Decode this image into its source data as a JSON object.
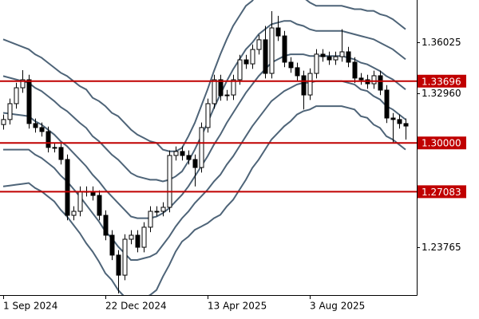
{
  "chart_data": {
    "type": "candlestick",
    "categories": [
      "1 Sep 2024",
      null,
      null,
      null,
      null,
      null,
      null,
      null,
      null,
      null,
      null,
      null,
      null,
      null,
      null,
      null,
      "22 Dec 2024",
      null,
      null,
      null,
      null,
      null,
      null,
      null,
      null,
      null,
      null,
      null,
      null,
      null,
      null,
      null,
      "13 Apr 2025",
      null,
      null,
      null,
      null,
      null,
      null,
      null,
      null,
      null,
      null,
      null,
      null,
      null,
      null,
      null,
      "3 Aug 2025",
      null,
      null,
      null,
      null,
      null,
      null,
      null,
      null,
      null,
      null,
      null,
      null,
      null,
      null,
      null
    ],
    "open": [
      1.311,
      1.314,
      1.3235,
      1.333,
      1.3378,
      1.3116,
      1.3092,
      1.3068,
      1.2973,
      1.2973,
      1.2901,
      1.2567,
      1.2591,
      1.271,
      1.271,
      1.2686,
      1.2567,
      1.2448,
      1.2329,
      1.2209,
      1.2424,
      1.2448,
      1.2376,
      1.2496,
      1.2591,
      1.2591,
      1.2615,
      1.2925,
      1.2949,
      1.2925,
      1.2901,
      1.2853,
      1.3092,
      1.3235,
      1.3378,
      1.3283,
      1.3287,
      1.3378,
      1.3497,
      1.3473,
      1.3559,
      1.3617,
      1.3416,
      1.3688,
      1.364,
      1.3483,
      1.345,
      1.3402,
      1.3287,
      1.3416,
      1.3531,
      1.3516,
      1.3497,
      1.3516,
      1.3545,
      1.3483,
      1.3388,
      1.3378,
      1.3354,
      1.3402,
      1.3316,
      1.3149,
      1.314,
      1.3116
    ],
    "high": [
      1.317,
      1.3265,
      1.336,
      1.3435,
      1.3408,
      1.3146,
      1.3122,
      1.3098,
      1.3003,
      1.3003,
      1.2931,
      1.2621,
      1.274,
      1.274,
      1.274,
      1.2716,
      1.2597,
      1.2478,
      1.2359,
      1.2454,
      1.2478,
      1.2478,
      1.2526,
      1.2621,
      1.2621,
      1.2645,
      1.2955,
      1.2979,
      1.2979,
      1.2955,
      1.2931,
      1.3122,
      1.3265,
      1.3408,
      1.3408,
      1.3317,
      1.3408,
      1.3527,
      1.3527,
      1.3589,
      1.3647,
      1.37,
      1.3788,
      1.376,
      1.367,
      1.3513,
      1.348,
      1.3432,
      1.3446,
      1.3561,
      1.3561,
      1.3546,
      1.3546,
      1.368,
      1.3575,
      1.3513,
      1.3418,
      1.3408,
      1.3432,
      1.3432,
      1.3346,
      1.3179,
      1.317,
      1.3146
    ],
    "low": [
      1.308,
      1.311,
      1.3205,
      1.33,
      1.3086,
      1.3062,
      1.3038,
      1.2943,
      1.2943,
      1.2871,
      1.2537,
      1.2537,
      1.2561,
      1.268,
      1.2656,
      1.2537,
      1.2418,
      1.2299,
      1.21,
      1.2179,
      1.2394,
      1.2346,
      1.2346,
      1.2466,
      1.2561,
      1.2561,
      1.2585,
      1.2895,
      1.2895,
      1.2871,
      1.274,
      1.2823,
      1.3062,
      1.3205,
      1.3253,
      1.3253,
      1.3257,
      1.3348,
      1.3443,
      1.3443,
      1.3529,
      1.3386,
      1.3386,
      1.361,
      1.3453,
      1.342,
      1.3372,
      1.32,
      1.3257,
      1.3386,
      1.3486,
      1.3467,
      1.3467,
      1.3486,
      1.3453,
      1.3358,
      1.3348,
      1.3324,
      1.3324,
      1.3286,
      1.3119,
      1.3,
      1.3086,
      1.302
    ],
    "close": [
      1.314,
      1.3235,
      1.333,
      1.3378,
      1.3116,
      1.3092,
      1.3068,
      1.2973,
      1.2973,
      1.2901,
      1.2567,
      1.2591,
      1.271,
      1.271,
      1.2686,
      1.2567,
      1.2448,
      1.2329,
      1.2209,
      1.2424,
      1.2448,
      1.2376,
      1.2496,
      1.2591,
      1.2591,
      1.2615,
      1.2925,
      1.2949,
      1.2925,
      1.2901,
      1.2853,
      1.3092,
      1.3235,
      1.3378,
      1.3283,
      1.3287,
      1.3378,
      1.3497,
      1.3473,
      1.3559,
      1.3617,
      1.3416,
      1.3688,
      1.364,
      1.3483,
      1.345,
      1.3402,
      1.3287,
      1.3416,
      1.3531,
      1.3516,
      1.3497,
      1.3516,
      1.3545,
      1.3483,
      1.3388,
      1.3378,
      1.3354,
      1.3402,
      1.3316,
      1.3149,
      1.314,
      1.3116,
      1.3101
    ],
    "up_color": "#ffffff",
    "down_color": "#000000",
    "outline_color": "#000000",
    "bands": {
      "color": "#4e6478",
      "lines": [
        [
          1.362,
          1.3605,
          1.359,
          1.3575,
          1.356,
          1.353,
          1.351,
          1.348,
          1.345,
          1.342,
          1.34,
          1.337,
          1.334,
          1.332,
          1.327,
          1.325,
          1.322,
          1.318,
          1.316,
          1.312,
          1.308,
          1.305,
          1.303,
          1.301,
          1.3,
          1.296,
          1.295,
          1.295,
          1.297,
          1.304,
          1.312,
          1.322,
          1.332,
          1.343,
          1.353,
          1.362,
          1.37,
          1.376,
          1.382,
          1.385,
          1.39,
          1.392,
          1.394,
          1.394,
          1.394,
          1.393,
          1.389,
          1.387,
          1.384,
          1.382,
          1.382,
          1.382,
          1.382,
          1.382,
          1.381,
          1.38,
          1.38,
          1.379,
          1.379,
          1.377,
          1.376,
          1.374,
          1.371,
          1.368
        ],
        [
          1.34,
          1.339,
          1.338,
          1.337,
          1.336,
          1.333,
          1.331,
          1.328,
          1.325,
          1.3215,
          1.319,
          1.3155,
          1.312,
          1.309,
          1.304,
          1.301,
          1.297,
          1.293,
          1.29,
          1.286,
          1.282,
          1.28,
          1.279,
          1.278,
          1.278,
          1.277,
          1.278,
          1.28,
          1.283,
          1.289,
          1.296,
          1.304,
          1.312,
          1.321,
          1.329,
          1.337,
          1.344,
          1.35,
          1.356,
          1.36,
          1.365,
          1.368,
          1.371,
          1.372,
          1.373,
          1.373,
          1.371,
          1.37,
          1.368,
          1.367,
          1.367,
          1.367,
          1.367,
          1.367,
          1.366,
          1.365,
          1.364,
          1.363,
          1.362,
          1.36,
          1.358,
          1.356,
          1.353,
          1.35
        ],
        [
          1.318,
          1.3175,
          1.317,
          1.3165,
          1.316,
          1.313,
          1.311,
          1.308,
          1.305,
          1.301,
          1.298,
          1.294,
          1.29,
          1.286,
          1.281,
          1.277,
          1.272,
          1.268,
          1.264,
          1.26,
          1.256,
          1.255,
          1.255,
          1.255,
          1.256,
          1.258,
          1.261,
          1.265,
          1.269,
          1.274,
          1.28,
          1.286,
          1.292,
          1.299,
          1.305,
          1.312,
          1.318,
          1.324,
          1.33,
          1.335,
          1.34,
          1.344,
          1.348,
          1.35,
          1.352,
          1.353,
          1.353,
          1.353,
          1.352,
          1.352,
          1.352,
          1.352,
          1.352,
          1.352,
          1.351,
          1.35,
          1.348,
          1.347,
          1.345,
          1.343,
          1.34,
          1.338,
          1.335,
          1.332
        ],
        [
          1.296,
          1.296,
          1.296,
          1.296,
          1.296,
          1.293,
          1.291,
          1.288,
          1.285,
          1.2805,
          1.277,
          1.2725,
          1.268,
          1.263,
          1.258,
          1.253,
          1.247,
          1.243,
          1.238,
          1.234,
          1.23,
          1.23,
          1.231,
          1.232,
          1.234,
          1.239,
          1.244,
          1.25,
          1.255,
          1.259,
          1.264,
          1.268,
          1.272,
          1.277,
          1.281,
          1.287,
          1.292,
          1.298,
          1.304,
          1.31,
          1.315,
          1.32,
          1.325,
          1.328,
          1.331,
          1.333,
          1.335,
          1.336,
          1.336,
          1.337,
          1.337,
          1.337,
          1.337,
          1.337,
          1.336,
          1.335,
          1.332,
          1.331,
          1.328,
          1.326,
          1.322,
          1.32,
          1.317,
          1.314
        ],
        [
          1.274,
          1.2745,
          1.275,
          1.2755,
          1.276,
          1.273,
          1.271,
          1.268,
          1.265,
          1.26,
          1.256,
          1.251,
          1.246,
          1.24,
          1.235,
          1.229,
          1.222,
          1.218,
          1.212,
          1.208,
          1.204,
          1.205,
          1.207,
          1.209,
          1.212,
          1.22,
          1.227,
          1.235,
          1.241,
          1.244,
          1.248,
          1.25,
          1.252,
          1.255,
          1.257,
          1.262,
          1.266,
          1.272,
          1.278,
          1.285,
          1.29,
          1.296,
          1.302,
          1.306,
          1.31,
          1.313,
          1.317,
          1.319,
          1.32,
          1.322,
          1.322,
          1.322,
          1.322,
          1.322,
          1.321,
          1.32,
          1.316,
          1.315,
          1.311,
          1.309,
          1.304,
          1.302,
          1.299,
          1.296
        ]
      ]
    },
    "levels": {
      "color": "#c00000",
      "values": [
        1.33696,
        {
          "value": 1.3,
          "label": "1.30000"
        },
        1.27083
      ]
    },
    "ylim": [
      1.209,
      1.3855
    ],
    "yticks": [
      1.36025,
      {
        "value": 1.3296,
        "label": "1.32960"
      },
      1.23765
    ]
  }
}
